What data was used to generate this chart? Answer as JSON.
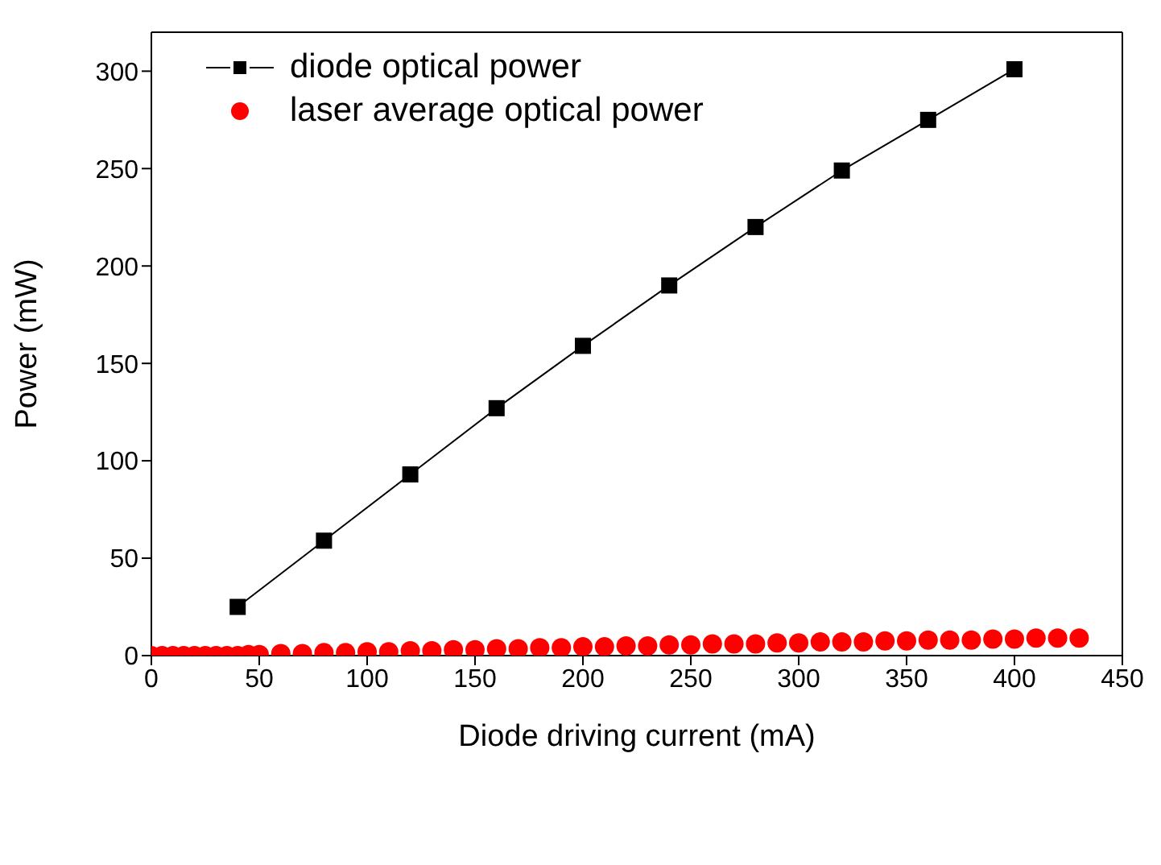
{
  "chart_data": {
    "type": "line",
    "xlabel": "Diode driving current (mA)",
    "ylabel": "Power (mW)",
    "xlim": [
      0,
      450
    ],
    "xticks": [
      0,
      50,
      100,
      150,
      200,
      250,
      300,
      350,
      400,
      450
    ],
    "ylim": [
      0,
      320
    ],
    "yticks": [
      0,
      50,
      100,
      150,
      200,
      250,
      300
    ],
    "legend": "top left",
    "series": [
      {
        "name": "diode optical power",
        "marker": "square",
        "line_style": "solid",
        "color": "#000000",
        "x": [
          40,
          80,
          120,
          160,
          200,
          240,
          280,
          320,
          360,
          400
        ],
        "values": [
          25,
          59,
          93,
          127,
          159,
          190,
          220,
          249,
          275,
          301
        ]
      },
      {
        "name": "laser average optical power",
        "type": "scatter",
        "marker": "circle",
        "color": "#ff0000",
        "x": [
          0,
          5,
          10,
          15,
          20,
          25,
          30,
          35,
          40,
          45,
          50,
          60,
          70,
          80,
          90,
          100,
          110,
          120,
          130,
          140,
          150,
          160,
          170,
          180,
          190,
          200,
          210,
          220,
          230,
          240,
          250,
          260,
          270,
          280,
          290,
          300,
          310,
          320,
          330,
          340,
          350,
          360,
          370,
          380,
          390,
          400,
          410,
          420,
          430
        ],
        "values": [
          0,
          0,
          0,
          0,
          0,
          0,
          0,
          0,
          0,
          0.5,
          0.5,
          1,
          1,
          1.5,
          1.5,
          2,
          2,
          2.5,
          2.5,
          3,
          3,
          3.5,
          3.5,
          4,
          4,
          4.5,
          4.5,
          5,
          5,
          5.5,
          5.5,
          6,
          6,
          6,
          6.5,
          6.5,
          7,
          7,
          7,
          7.5,
          7.5,
          8,
          8,
          8,
          8.5,
          8.5,
          9,
          9,
          9
        ]
      }
    ]
  }
}
